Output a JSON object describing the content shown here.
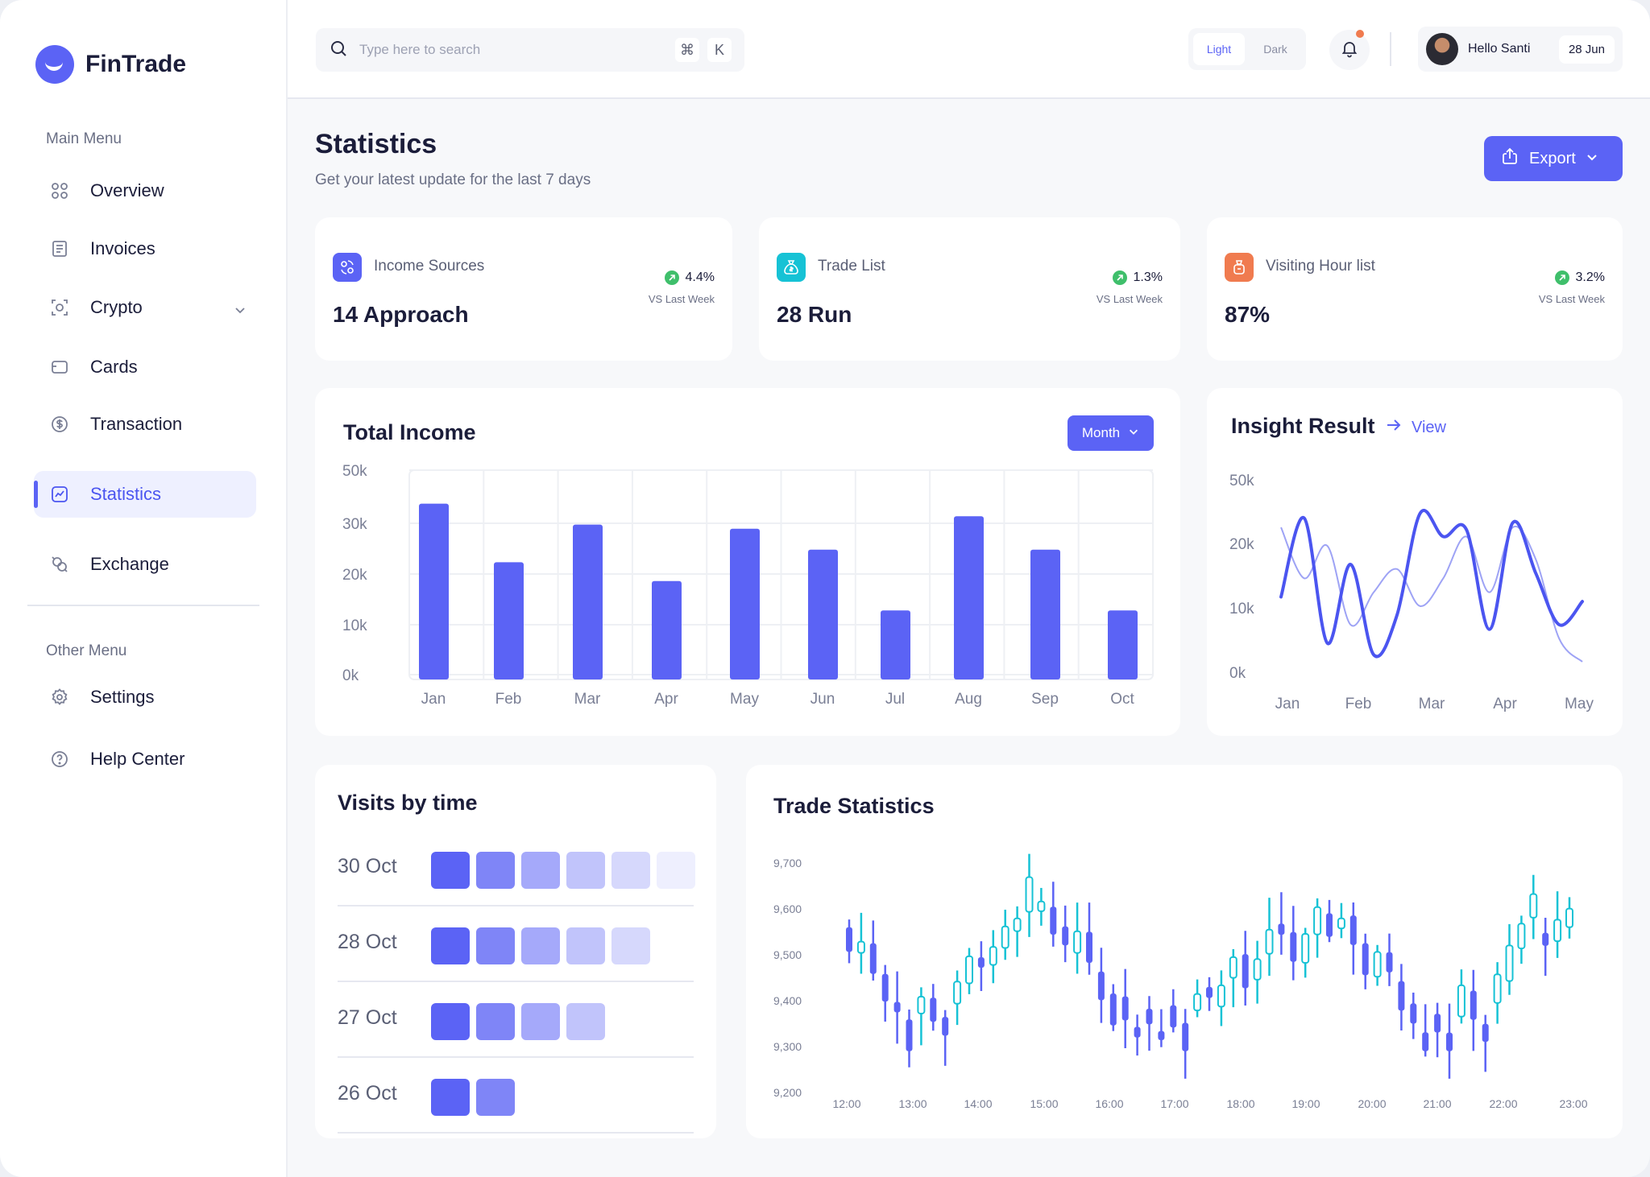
{
  "brand": {
    "name": "FinTrade"
  },
  "sidebar": {
    "main_menu_title": "Main Menu",
    "items": [
      {
        "label": "Overview",
        "icon": "grid-icon"
      },
      {
        "label": "Invoices",
        "icon": "document-icon"
      },
      {
        "label": "Crypto",
        "icon": "crypto-icon"
      },
      {
        "label": "Cards",
        "icon": "card-icon"
      },
      {
        "label": "Transaction",
        "icon": "dollar-circle-icon"
      },
      {
        "label": "Statistics",
        "icon": "chart-icon",
        "active": true
      },
      {
        "label": "Exchange",
        "icon": "exchange-icon"
      }
    ],
    "other_menu_title": "Other Menu",
    "other_items": [
      {
        "label": "Settings",
        "icon": "gear-icon"
      },
      {
        "label": "Help Center",
        "icon": "help-icon"
      }
    ]
  },
  "header": {
    "search": {
      "placeholder": "Type here to search",
      "shortcut_key": "K"
    },
    "theme": {
      "light": "Light",
      "dark": "Dark",
      "selected": "Light"
    },
    "user": {
      "greeting": "Hello Santi",
      "date": "28 Jun"
    }
  },
  "page": {
    "title": "Statistics",
    "subtitle": "Get your latest update for the last 7 days",
    "export_label": "Export"
  },
  "stats": [
    {
      "label": "Income Sources",
      "value": "14 Approach",
      "change": "4.4%",
      "vs": "VS Last Week",
      "color": "#5b63f5"
    },
    {
      "label": "Trade List",
      "value": "28 Run",
      "change": "1.3%",
      "vs": "VS Last Week",
      "color": "#16c2d5"
    },
    {
      "label": "Visiting Hour list",
      "value": "87%",
      "change": "3.2%",
      "vs": "VS Last Week",
      "color": "#f07b4f"
    }
  ],
  "total_income": {
    "title": "Total Income",
    "period": "Month"
  },
  "insight": {
    "title": "Insight Result",
    "view_label": "View"
  },
  "visits": {
    "title": "Visits by time",
    "rows": [
      {
        "date": "30 Oct",
        "levels": [
          1.0,
          0.78,
          0.55,
          0.38,
          0.25,
          0.1
        ]
      },
      {
        "date": "28 Oct",
        "levels": [
          1.0,
          0.78,
          0.55,
          0.38,
          0.25
        ]
      },
      {
        "date": "27 Oct",
        "levels": [
          1.0,
          0.78,
          0.55,
          0.38
        ]
      },
      {
        "date": "26 Oct",
        "levels": [
          1.0,
          0.78
        ]
      }
    ]
  },
  "trade": {
    "title": "Trade Statistics"
  },
  "chart_data": [
    {
      "type": "bar",
      "title": "Total Income",
      "categories": [
        "Jan",
        "Feb",
        "Mar",
        "Apr",
        "May",
        "Jun",
        "Jul",
        "Aug",
        "Sep",
        "Oct"
      ],
      "values": [
        42000,
        28000,
        37000,
        23500,
        36000,
        31000,
        16500,
        39000,
        31000,
        16500
      ],
      "y_ticks": [
        "50k",
        "30k",
        "20k",
        "10k",
        "0k"
      ],
      "ylim": [
        0,
        50000
      ],
      "grid": true,
      "color": "#5b63f5"
    },
    {
      "type": "line",
      "title": "Insight Result",
      "x_labels": [
        "Jan",
        "Feb",
        "Mar",
        "Apr",
        "May"
      ],
      "y_ticks": [
        "50k",
        "20k",
        "10k",
        "0k"
      ],
      "series": [
        {
          "values": [
            14000,
            31000,
            4000,
            21000,
            1500,
            10000,
            32000,
            27000,
            28500,
            7000,
            30000,
            19000,
            8000,
            13000
          ],
          "color": "#4b55f0",
          "weight": "bold"
        },
        {
          "values": [
            29000,
            18000,
            25000,
            8000,
            15000,
            20000,
            12000,
            18000,
            27000,
            15000,
            29000,
            22000,
            5000,
            0
          ],
          "color": "#9ea3f5",
          "weight": "light"
        }
      ]
    },
    {
      "type": "candlestick",
      "title": "Trade Statistics",
      "x_labels": [
        "12:00",
        "13:00",
        "14:00",
        "15:00",
        "16:00",
        "17:00",
        "18:00",
        "19:00",
        "20:00",
        "21:00",
        "22:00",
        "23:00"
      ],
      "y_ticks": [
        "9,700",
        "9,600",
        "9,500",
        "9,400",
        "9,300",
        "9,200"
      ],
      "ylim": [
        9200,
        9700
      ],
      "colors": {
        "up": "#16c2d5",
        "down": "#5b63f5"
      }
    }
  ]
}
